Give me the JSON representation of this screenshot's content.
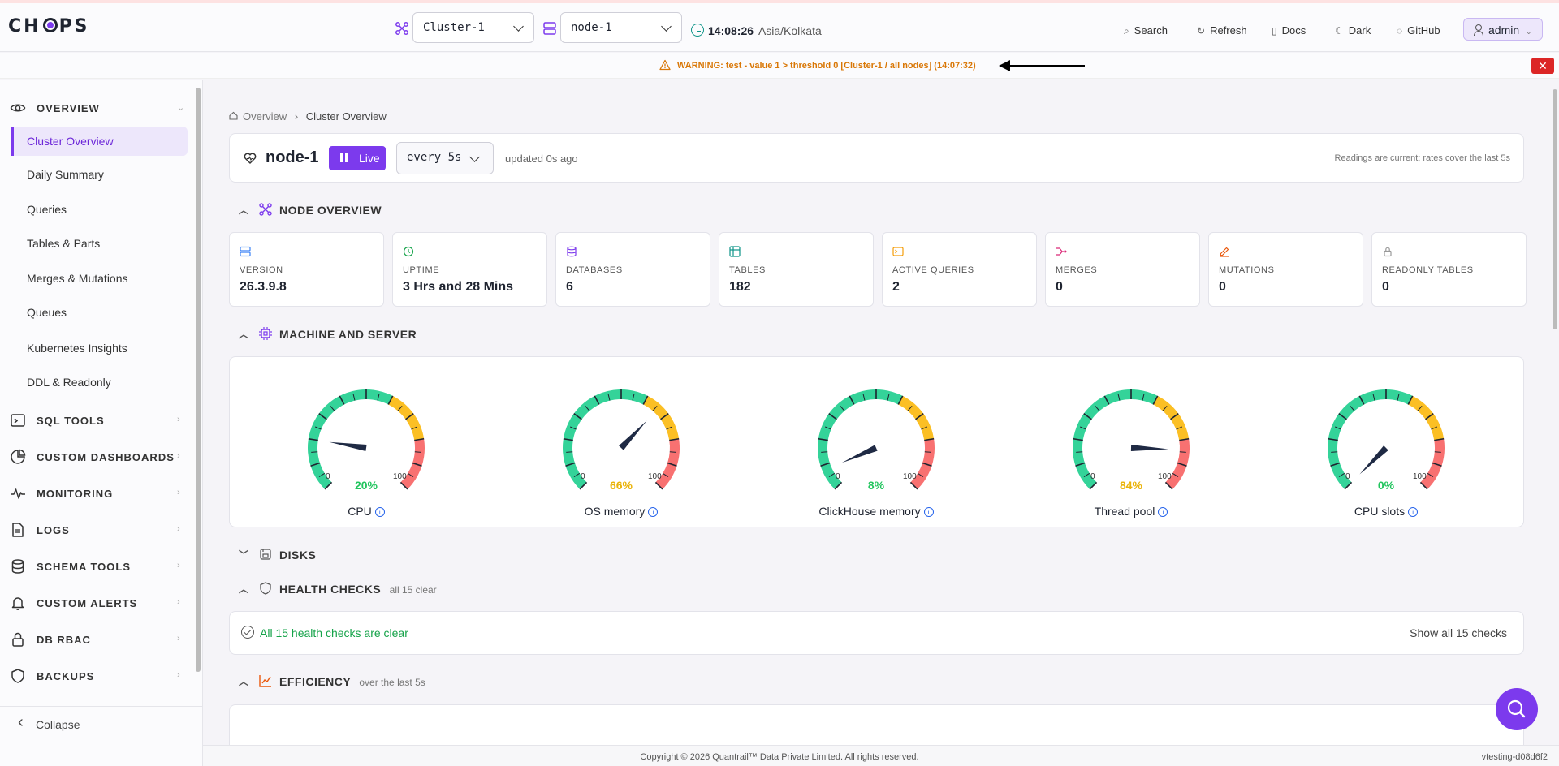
{
  "header": {
    "logo": "CHOPS",
    "cluster": "Cluster-1",
    "node": "node-1",
    "time": "14:08:26",
    "timezone": "Asia/Kolkata",
    "nav": [
      "Search",
      "Refresh",
      "Docs",
      "Dark",
      "GitHub"
    ],
    "user": "admin"
  },
  "warning": {
    "text": "WARNING: test - value 1 > threshold 0 [Cluster-1 / all nodes] (14:07:32)",
    "close": "✕"
  },
  "sidebar": {
    "overview_label": "OVERVIEW",
    "overview_items": [
      "Cluster Overview",
      "Daily Summary",
      "Queries",
      "Tables & Parts",
      "Merges & Mutations",
      "Queues",
      "Kubernetes Insights",
      "DDL & Readonly"
    ],
    "sections": [
      "SQL TOOLS",
      "CUSTOM DASHBOARDS",
      "MONITORING",
      "LOGS",
      "SCHEMA TOOLS",
      "CUSTOM ALERTS",
      "DB RBAC",
      "BACKUPS"
    ],
    "collapse": "Collapse"
  },
  "breadcrumb": {
    "root": "Overview",
    "current": "Cluster Overview"
  },
  "node_panel": {
    "title": "node-1",
    "live": "Live",
    "interval": "every 5s",
    "updated": "updated 0s ago",
    "readings": "Readings are current; rates cover the last 5s"
  },
  "node_overview": {
    "title": "NODE OVERVIEW",
    "stats": [
      {
        "label": "VERSION",
        "value": "26.3.9.8",
        "icon": "server-icon",
        "color": "#3b82f6"
      },
      {
        "label": "UPTIME",
        "value": "3 Hrs and 28 Mins",
        "icon": "clock-icon",
        "color": "#16a34a"
      },
      {
        "label": "DATABASES",
        "value": "6",
        "icon": "database-icon",
        "color": "#7c3aed"
      },
      {
        "label": "TABLES",
        "value": "182",
        "icon": "table-icon",
        "color": "#0d9488"
      },
      {
        "label": "ACTIVE QUERIES",
        "value": "2",
        "icon": "terminal-icon",
        "color": "#f59e0b"
      },
      {
        "label": "MERGES",
        "value": "0",
        "icon": "merge-icon",
        "color": "#db2777"
      },
      {
        "label": "MUTATIONS",
        "value": "0",
        "icon": "edit-icon",
        "color": "#ea580c"
      },
      {
        "label": "READONLY TABLES",
        "value": "0",
        "icon": "lock-icon",
        "color": "#999999"
      }
    ]
  },
  "machine": {
    "title": "MACHINE AND SERVER",
    "gauges": [
      {
        "name": "CPU",
        "value": 20,
        "pct": "20%",
        "color": "#22c55e",
        "min": "0",
        "max": "100"
      },
      {
        "name": "OS memory",
        "value": 66,
        "pct": "66%",
        "color": "#eab308",
        "min": "0",
        "max": "100"
      },
      {
        "name": "ClickHouse memory",
        "value": 8,
        "pct": "8%",
        "color": "#22c55e",
        "min": "0",
        "max": "100"
      },
      {
        "name": "Thread pool",
        "value": 84,
        "pct": "84%",
        "color": "#eab308",
        "min": "0",
        "max": "100"
      },
      {
        "name": "CPU slots",
        "value": 0,
        "pct": "0%",
        "color": "#22c55e",
        "min": "0",
        "max": "100"
      }
    ]
  },
  "disks": {
    "title": "DISKS"
  },
  "health": {
    "title": "HEALTH CHECKS",
    "sub": "all 15 clear",
    "message": "All 15 health checks are clear",
    "show_all": "Show all 15 checks"
  },
  "efficiency": {
    "title": "EFFICIENCY",
    "sub": "over the last 5s"
  },
  "footer": {
    "copyright": "Copyright © 2026 Quantrail™ Data Private Limited. All rights reserved.",
    "version": "vtesting-d08d6f2"
  }
}
